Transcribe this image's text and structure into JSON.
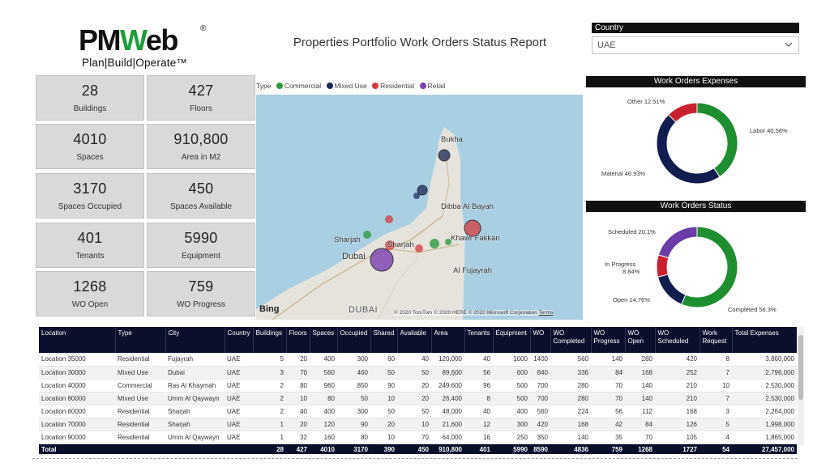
{
  "logo": {
    "brand_pm": "PM",
    "brand_w": "W",
    "brand_eb": "eb",
    "reg": "®",
    "tagline": "Plan|Build|Operate™"
  },
  "header": {
    "title": "Properties Portfolio Work Orders Status Report"
  },
  "slicer": {
    "label": "Country",
    "value": "UAE"
  },
  "kpis": [
    {
      "value": "28",
      "label": "Buildings"
    },
    {
      "value": "427",
      "label": "Floors"
    },
    {
      "value": "4010",
      "label": "Spaces"
    },
    {
      "value": "910,800",
      "label": "Area in M2"
    },
    {
      "value": "3170",
      "label": "Spaces Occupied"
    },
    {
      "value": "450",
      "label": "Spaces Available"
    },
    {
      "value": "401",
      "label": "Tenants"
    },
    {
      "value": "5990",
      "label": "Equipment"
    },
    {
      "value": "1268",
      "label": "WO Open"
    },
    {
      "value": "759",
      "label": "WO Progress"
    }
  ],
  "map": {
    "legend_title": "Type",
    "legend": [
      {
        "label": "Commercial",
        "color": "#2e9b3e"
      },
      {
        "label": "Mixed Use",
        "color": "#1a2657"
      },
      {
        "label": "Residential",
        "color": "#d63b3b"
      },
      {
        "label": "Retail",
        "color": "#7b3fb3"
      }
    ],
    "labels": {
      "bukha": "Bukha",
      "dibba": "Dibba Al Bayah",
      "khawr": "Khawr Fakkan",
      "sharjah": "Sharjah",
      "sharjah2": "Sharjah",
      "dubai": "Dubai",
      "fujayrah": "Al Fujayrah",
      "dubai_big": "DUBAI"
    },
    "bing": "Bing",
    "copyright": "© 2020 TomTom © 2020 HERE © 2020 Microsoft Corporation",
    "terms": "Terms"
  },
  "expenses": {
    "title": "Work Orders Expenses",
    "labels": [
      "Labor 40.56%",
      "Material 46.93%",
      "Other 12.51%"
    ]
  },
  "status": {
    "title": "Work Orders Status",
    "labels": [
      "Completed 56.3%",
      "Open 14.76%",
      "In Progress",
      "8.84%",
      "Scheduled 20.1%"
    ]
  },
  "chart_data": [
    {
      "type": "pie",
      "title": "Work Orders Expenses",
      "categories": [
        "Labor",
        "Material",
        "Other"
      ],
      "values": [
        40.56,
        46.93,
        12.51
      ],
      "colors": [
        "#1e8f30",
        "#111d4f",
        "#c8202c"
      ]
    },
    {
      "type": "pie",
      "title": "Work Orders Status",
      "categories": [
        "Completed",
        "Open",
        "In Progress",
        "Scheduled"
      ],
      "values": [
        56.3,
        14.76,
        8.84,
        20.1
      ],
      "colors": [
        "#1e8f30",
        "#111d4f",
        "#c8202c",
        "#6b3ca8"
      ]
    }
  ],
  "table": {
    "columns": [
      "Location",
      "Type",
      "City",
      "Country",
      "Buildings",
      "Floors",
      "Spaces",
      "Occupied",
      "Shared",
      "Available",
      "Area",
      "Tenants",
      "Equipment",
      "WO",
      "WO Completed",
      "WO Progress",
      "WO Open",
      "WO Scheduled",
      "Work Request",
      "Total Expenses"
    ],
    "rows": [
      [
        "Location 35000",
        "Residential",
        "Fujayrah",
        "UAE",
        "5",
        "20",
        "400",
        "300",
        "60",
        "40",
        "120,000",
        "40",
        "1000",
        "1400",
        "560",
        "140",
        "280",
        "420",
        "8",
        "3,860,000"
      ],
      [
        "Location 30000",
        "Mixed Use",
        "Dubai",
        "UAE",
        "3",
        "70",
        "560",
        "460",
        "50",
        "50",
        "89,600",
        "56",
        "600",
        "840",
        "336",
        "84",
        "168",
        "252",
        "7",
        "2,796,000"
      ],
      [
        "Location 40000",
        "Commercial",
        "Ras Al Khaymah",
        "UAE",
        "2",
        "80",
        "960",
        "850",
        "90",
        "20",
        "249,600",
        "96",
        "500",
        "700",
        "280",
        "70",
        "140",
        "210",
        "10",
        "2,530,000"
      ],
      [
        "Location 80000",
        "Mixed Use",
        "Umm Al Qaywayn",
        "UAE",
        "2",
        "10",
        "80",
        "50",
        "10",
        "20",
        "26,400",
        "8",
        "500",
        "700",
        "280",
        "70",
        "140",
        "210",
        "7",
        "2,530,000"
      ],
      [
        "Location 60000",
        "Residential",
        "Sharjah",
        "UAE",
        "2",
        "40",
        "400",
        "300",
        "50",
        "50",
        "48,000",
        "40",
        "400",
        "560",
        "224",
        "56",
        "112",
        "168",
        "3",
        "2,264,000"
      ],
      [
        "Location 70000",
        "Residential",
        "Sharjah",
        "UAE",
        "1",
        "20",
        "120",
        "90",
        "20",
        "10",
        "21,600",
        "12",
        "300",
        "420",
        "168",
        "42",
        "84",
        "126",
        "5",
        "1,998,000"
      ],
      [
        "Location 90000",
        "Residential",
        "Umm Al Qaywayn",
        "UAE",
        "1",
        "32",
        "160",
        "80",
        "10",
        "70",
        "64,000",
        "16",
        "250",
        "350",
        "140",
        "35",
        "70",
        "105",
        "4",
        "1,865,000"
      ]
    ],
    "total": [
      "Total",
      "",
      "",
      "",
      "28",
      "427",
      "4010",
      "3170",
      "390",
      "450",
      "910,800",
      "401",
      "5990",
      "8590",
      "4836",
      "759",
      "1268",
      "1727",
      "54",
      "27,457,000"
    ]
  }
}
